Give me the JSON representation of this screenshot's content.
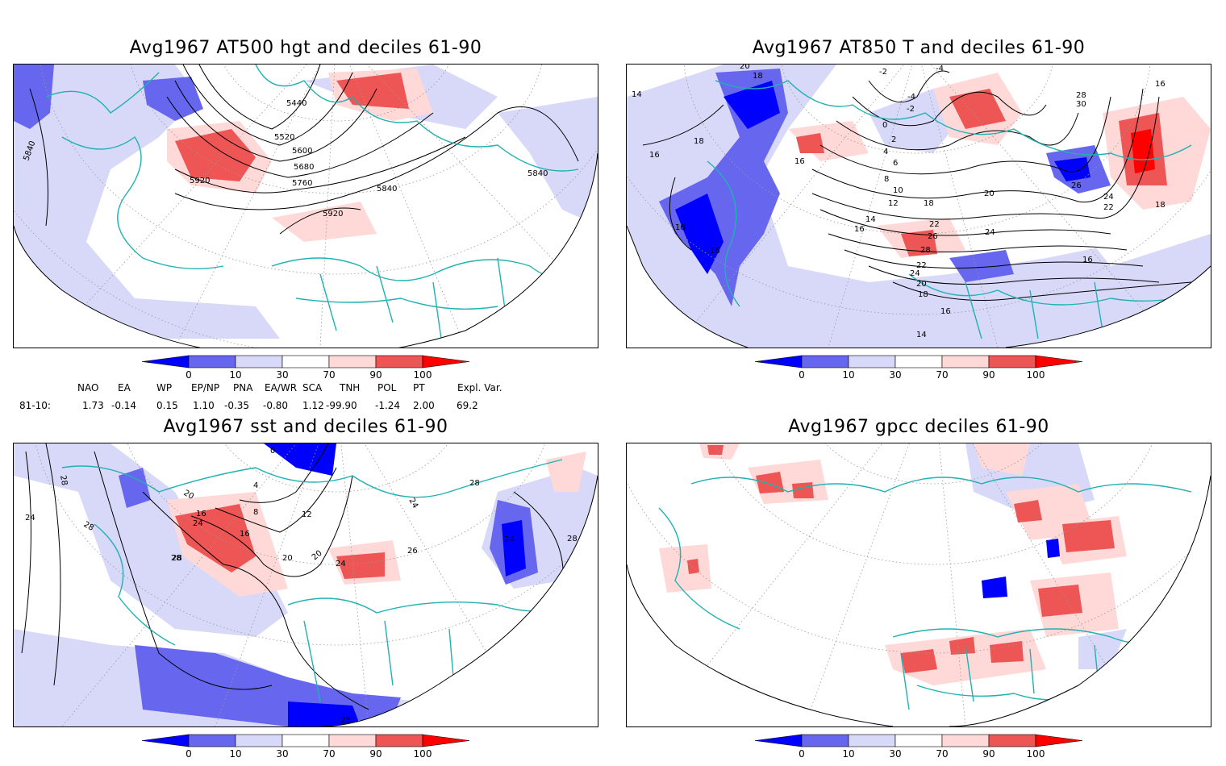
{
  "panels": [
    {
      "id": "at500",
      "title": "Avg1967 AT500 hgt and deciles 61-90",
      "contour_labels": [
        "5840",
        "5440",
        "5520",
        "5600",
        "5680",
        "5760",
        "5920",
        "5840",
        "5920",
        "5840"
      ]
    },
    {
      "id": "at850",
      "title": "Avg1967 AT850 T and deciles 61-90",
      "contour_labels": [
        "14",
        "20",
        "18",
        "16",
        "18",
        "16",
        "16",
        "-2",
        "-4",
        "-2",
        "-4",
        "0",
        "2",
        "4",
        "6",
        "8",
        "10",
        "12",
        "14",
        "16",
        "18",
        "20",
        "22",
        "24",
        "26",
        "28",
        "22",
        "24",
        "20",
        "18",
        "16",
        "14",
        "16",
        "26",
        "24",
        "22",
        "30",
        "28",
        "16",
        "16",
        "18"
      ]
    },
    {
      "id": "sst",
      "title": "Avg1967 sst and deciles 61-90",
      "contour_labels": [
        "28",
        "24",
        "28",
        "28",
        "20",
        "16",
        "24",
        "8",
        "12",
        "16",
        "20",
        "4",
        "0",
        "24",
        "26",
        "28",
        "24",
        "28",
        "24",
        "20",
        "28"
      ]
    },
    {
      "id": "gpcc",
      "title": "Avg1967 gpcc deciles 61-90",
      "contour_labels": []
    }
  ],
  "colorbar": {
    "ticks": [
      "0",
      "10",
      "30",
      "70",
      "90",
      "100"
    ],
    "colors": [
      "#0000ff",
      "#6666ee",
      "#d8d8f8",
      "#ffffff",
      "#ffd8d8",
      "#ee5555",
      "#ff0000"
    ]
  },
  "indices": {
    "headers": [
      "NAO",
      "EA",
      "WP",
      "EP/NP",
      "PNA",
      "EA/WR",
      "SCA",
      "TNH",
      "POL",
      "PT",
      "Expl. Var."
    ],
    "row_label": "81-10:",
    "values": [
      "1.73",
      "-0.14",
      "0.15",
      "1.10",
      "-0.35",
      "-0.80",
      "1.12",
      "-99.90",
      "-1.24",
      "2.00",
      "69.2"
    ]
  },
  "colors": {
    "coastline": "#20b2b2",
    "contour": "#000000",
    "grid": "#999999"
  }
}
